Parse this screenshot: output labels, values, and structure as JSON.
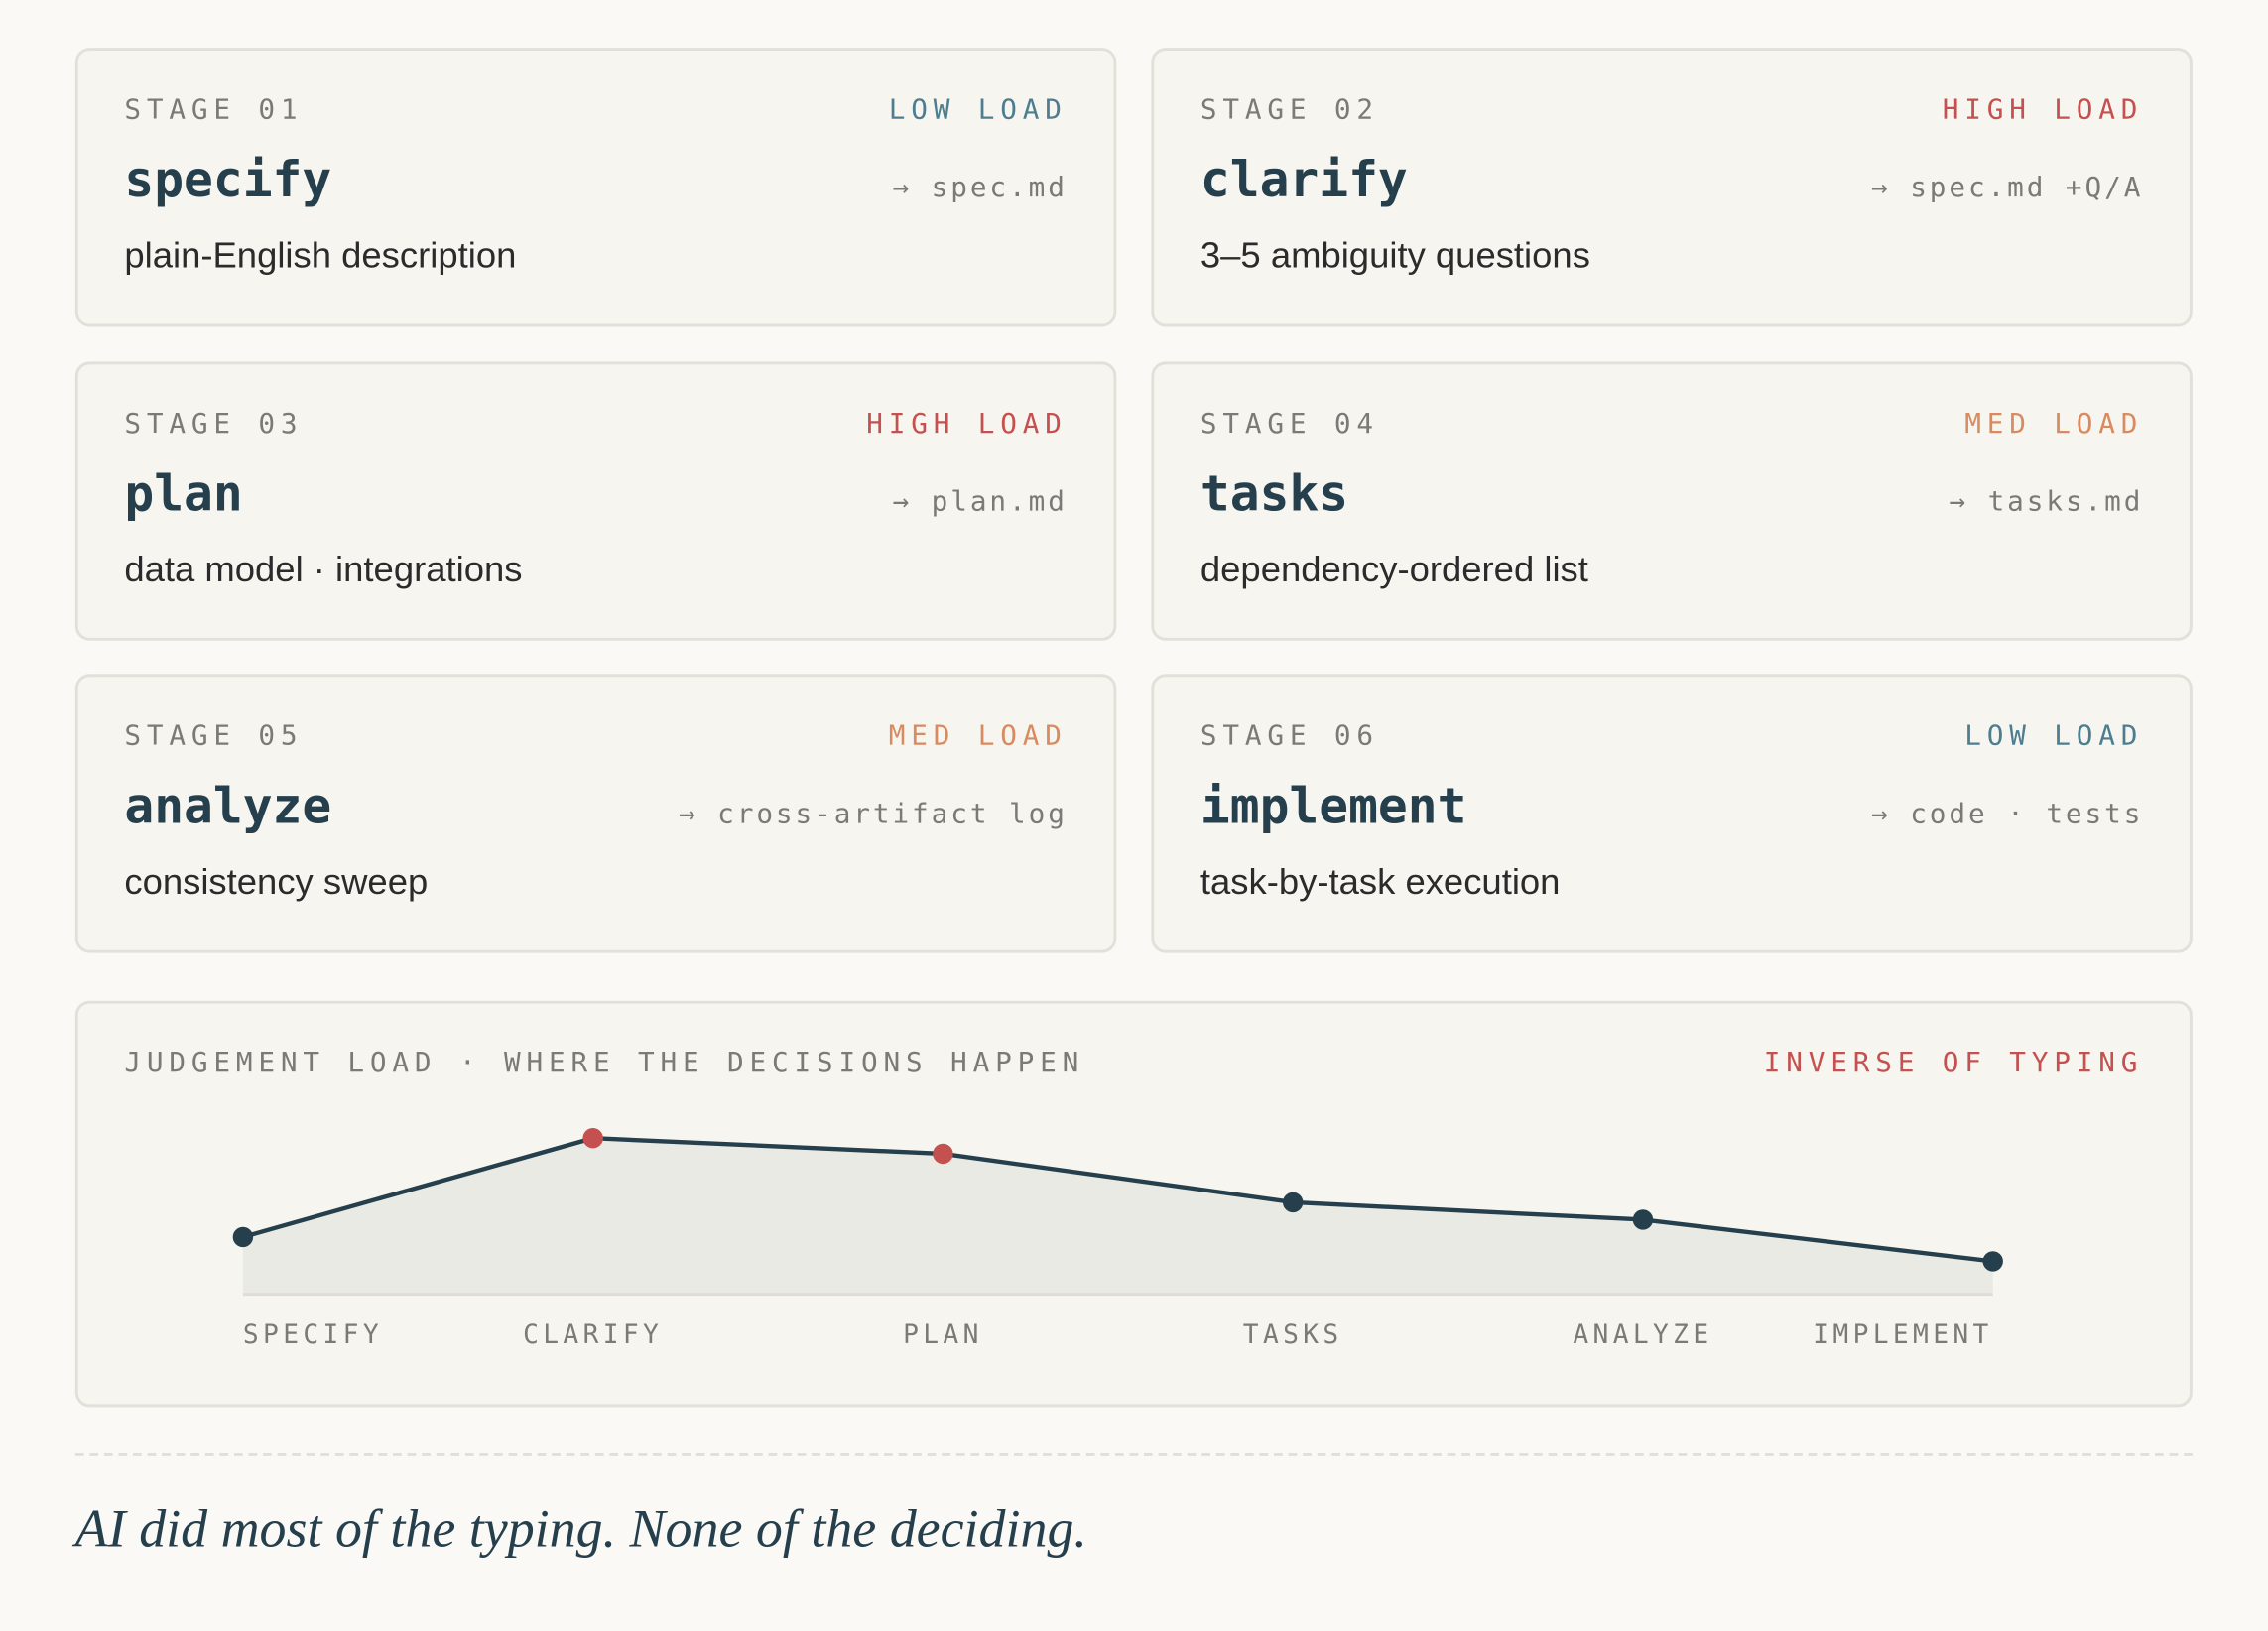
{
  "stages": [
    {
      "stage": "STAGE 01",
      "load": "LOW LOAD",
      "load_color": "#4d7d8e",
      "name": "specify",
      "output": "→ spec.md",
      "description": "plain-English description"
    },
    {
      "stage": "STAGE 02",
      "load": "HIGH LOAD",
      "load_color": "#c4514f",
      "name": "clarify",
      "output": "→ spec.md +Q/A",
      "description": "3–5 ambiguity questions"
    },
    {
      "stage": "STAGE 03",
      "load": "HIGH LOAD",
      "load_color": "#c4514f",
      "name": "plan",
      "output": "→ plan.md",
      "description": "data model · integrations"
    },
    {
      "stage": "STAGE 04",
      "load": "MED LOAD",
      "load_color": "#d98b60",
      "name": "tasks",
      "output": "→ tasks.md",
      "description": "dependency-ordered list"
    },
    {
      "stage": "STAGE 05",
      "load": "MED LOAD",
      "load_color": "#d98b60",
      "name": "analyze",
      "output": "→ cross-artifact log",
      "description": "consistency sweep"
    },
    {
      "stage": "STAGE 06",
      "load": "LOW LOAD",
      "load_color": "#4d7d8e",
      "name": "implement",
      "output": "→ code · tests",
      "description": "task-by-task execution"
    }
  ],
  "chart_data": {
    "type": "line",
    "title": "JUDGEMENT LOAD · WHERE THE DECISIONS HAPPEN",
    "annotation": "INVERSE OF TYPING",
    "categories": [
      "SPECIFY",
      "CLARIFY",
      "PLAN",
      "TASKS",
      "ANALYZE",
      "IMPLEMENT"
    ],
    "values": [
      3.3,
      9,
      8.1,
      5.3,
      4.3,
      1.9
    ],
    "ylim": [
      0,
      10
    ],
    "color": "#253f4d",
    "fill": "#e9eae4",
    "point_colors": [
      "#253f4d",
      "#c4514f",
      "#c4514f",
      "#253f4d",
      "#253f4d",
      "#253f4d"
    ]
  },
  "footer": {
    "quote": "AI did most of the typing. None of the deciding."
  }
}
